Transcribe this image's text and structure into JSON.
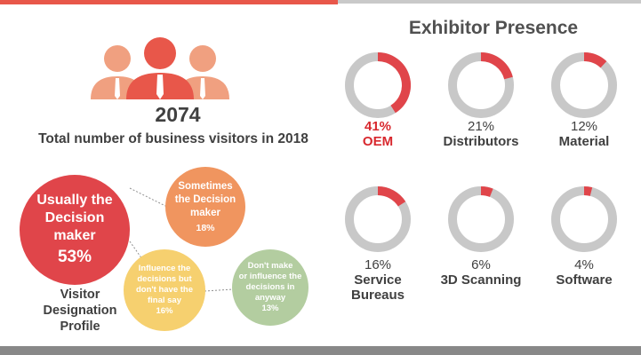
{
  "visitors": {
    "count": "2074",
    "caption": "Total number of business visitors in 2018"
  },
  "designation": {
    "label_lines": [
      "Visitor",
      "Designation",
      "Profile"
    ],
    "bubbles": {
      "main": {
        "lines": [
          "Usually the",
          "Decision",
          "maker"
        ],
        "percent": "53%"
      },
      "sometimes": {
        "lines": [
          "Sometimes",
          "the Decision",
          "maker"
        ],
        "percent": "18%"
      },
      "influence": {
        "lines": [
          "Influence the",
          "decisions but",
          "don't have the",
          "final say"
        ],
        "percent": "16%"
      },
      "dont": {
        "lines": [
          "Don't make",
          "or influence the",
          "decisions in",
          "anyway"
        ],
        "percent": "13%"
      }
    }
  },
  "exhibitor": {
    "title": "Exhibitor Presence",
    "items": [
      {
        "percent_label": "41%",
        "name_lines": [
          "OEM"
        ],
        "value": 41
      },
      {
        "percent_label": "21%",
        "name_lines": [
          "Distributors"
        ],
        "value": 21
      },
      {
        "percent_label": "12%",
        "name_lines": [
          "Material"
        ],
        "value": 12
      },
      {
        "percent_label": "16%",
        "name_lines": [
          "Service",
          "Bureaus"
        ],
        "value": 16
      },
      {
        "percent_label": "6%",
        "name_lines": [
          "3D Scanning"
        ],
        "value": 6
      },
      {
        "percent_label": "4%",
        "name_lines": [
          "Software"
        ],
        "value": 4
      }
    ]
  },
  "colors": {
    "accent": "#e8574a",
    "donut_track": "#c8c8c8",
    "donut_fill": "#e0454a",
    "highlight_text": "#d8282e"
  }
}
